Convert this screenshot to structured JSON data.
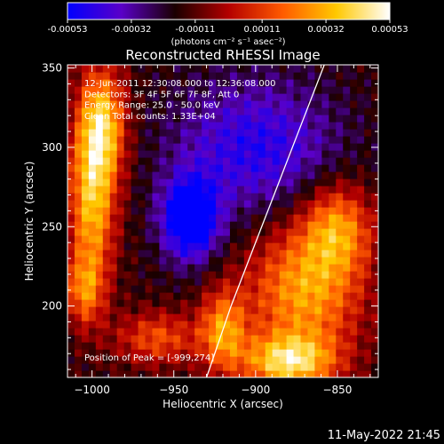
{
  "colorbar": {
    "tick_labels": [
      "-0.00053",
      "-0.00032",
      "-0.00011",
      "0.00011",
      "0.00032",
      "0.00053"
    ],
    "range": [
      -0.00053,
      0.00053
    ],
    "unit_label": "(photons cm⁻² s⁻¹ asec⁻²)",
    "colors": [
      "#0000ff",
      "#5a00c8",
      "#1a0000",
      "#b40000",
      "#ff5a00",
      "#ffc800",
      "#ffffff"
    ]
  },
  "chart_data": {
    "type": "heatmap",
    "title": "Reconstructed RHESSI Image",
    "xlabel": "Heliocentric X (arcsec)",
    "ylabel": "Heliocentric Y (arcsec)",
    "xlim": [
      -1015,
      -825
    ],
    "ylim": [
      155,
      352
    ],
    "x_ticks": [
      -1000,
      -950,
      -900,
      -850
    ],
    "y_ticks": [
      200,
      250,
      300,
      350
    ],
    "x_tick_labels": [
      "−1000",
      "−950",
      "−900",
      "−850"
    ],
    "y_tick_labels": [
      "200",
      "250",
      "300",
      "350"
    ],
    "limb_curve": [
      [
        -930,
        155
      ],
      [
        -915,
        200
      ],
      [
        -900,
        240
      ],
      [
        -885,
        280
      ],
      [
        -870,
        320
      ],
      [
        -858,
        352
      ]
    ],
    "peak": [
      -999,
      274
    ],
    "annotations": [
      "12-Jun-2011 12:30:08.000 to 12:36:08.000",
      "Detectors: 3F 4F 5F 6F 7F 8F, Att 0",
      "Energy Range: 25.0 - 50.0 keV",
      "Clean    Total counts: 1.33E+04"
    ],
    "peak_label": "Position of Peak = [-999,274]",
    "sources": [
      {
        "x": -1000,
        "y": 268,
        "amp": 0.0005,
        "sx": 10,
        "sy": 40
      },
      {
        "x": -993,
        "y": 315,
        "amp": 0.00045,
        "sx": 10,
        "sy": 25
      },
      {
        "x": -960,
        "y": 180,
        "amp": 0.0003,
        "sx": 18,
        "sy": 12
      },
      {
        "x": -870,
        "y": 210,
        "amp": 0.00045,
        "sx": 25,
        "sy": 30
      },
      {
        "x": -850,
        "y": 250,
        "amp": 0.00038,
        "sx": 15,
        "sy": 20
      },
      {
        "x": -880,
        "y": 165,
        "amp": 0.00052,
        "sx": 20,
        "sy": 12
      },
      {
        "x": -920,
        "y": 185,
        "amp": 0.0004,
        "sx": 10,
        "sy": 18
      },
      {
        "x": -940,
        "y": 255,
        "amp": -0.00053,
        "sx": 12,
        "sy": 18
      },
      {
        "x": -900,
        "y": 300,
        "amp": -0.0003,
        "sx": 35,
        "sy": 30
      },
      {
        "x": -1005,
        "y": 210,
        "amp": 0.0003,
        "sx": 8,
        "sy": 15
      }
    ]
  },
  "footer": {
    "timestamp": "11-May-2022 21:45"
  }
}
